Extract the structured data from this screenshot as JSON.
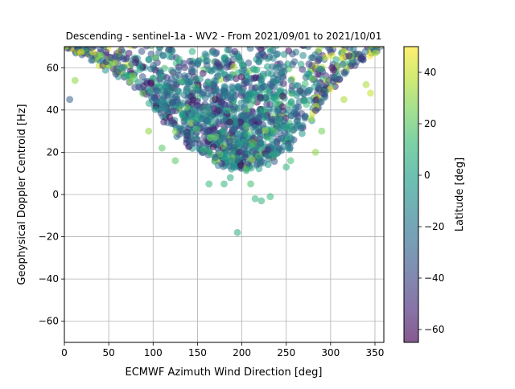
{
  "chart_data": {
    "type": "scatter",
    "title": "Descending - sentinel-1a - WV2 - From 2021/09/01 to 2021/10/01",
    "xlabel": "ECMWF Azimuth Wind Direction [deg]",
    "ylabel": "Geophysical Doppler Centroid [Hz]",
    "xlim": [
      0,
      360
    ],
    "ylim": [
      -70,
      70
    ],
    "xticks": [
      "0",
      "50",
      "100",
      "150",
      "200",
      "250",
      "300",
      "350"
    ],
    "yticks": [
      "−60",
      "−40",
      "−20",
      "0",
      "20",
      "40",
      "60"
    ],
    "grid": true,
    "colorbar": {
      "label": "Latitude [deg]",
      "range": [
        -65,
        50
      ],
      "ticks": [
        "−60",
        "−40",
        "−20",
        "0",
        "20",
        "40"
      ],
      "colormap": "viridis"
    },
    "points": [
      {
        "x": 195,
        "y": -18,
        "lat": 5
      },
      {
        "x": 215,
        "y": -2,
        "lat": 10
      },
      {
        "x": 222,
        "y": -3,
        "lat": 8
      },
      {
        "x": 232,
        "y": -1,
        "lat": 12
      },
      {
        "x": 210,
        "y": 5,
        "lat": 15
      },
      {
        "x": 180,
        "y": 5,
        "lat": 10
      },
      {
        "x": 187,
        "y": 8,
        "lat": 5
      },
      {
        "x": 163,
        "y": 5,
        "lat": 12
      },
      {
        "x": 205,
        "y": 12,
        "lat": 15
      },
      {
        "x": 250,
        "y": 13,
        "lat": 10
      },
      {
        "x": 255,
        "y": 16,
        "lat": 15
      },
      {
        "x": 125,
        "y": 16,
        "lat": 20
      },
      {
        "x": 6,
        "y": 45,
        "lat": -30
      },
      {
        "x": 12,
        "y": 54,
        "lat": 30
      },
      {
        "x": 315,
        "y": 45,
        "lat": 35
      },
      {
        "x": 345,
        "y": 48,
        "lat": 40
      },
      {
        "x": 340,
        "y": 52,
        "lat": 35
      },
      {
        "x": 283,
        "y": 20,
        "lat": 30
      },
      {
        "x": 290,
        "y": 30,
        "lat": 25
      },
      {
        "x": 278,
        "y": 36,
        "lat": 35
      },
      {
        "x": 95,
        "y": 30,
        "lat": 30
      },
      {
        "x": 110,
        "y": 22,
        "lat": 20
      },
      {
        "x": 280,
        "y": 55,
        "lat": 25
      },
      {
        "x": 60,
        "y": 58,
        "lat": -35
      }
    ],
    "cloud": {
      "count": 1500,
      "lat_range": [
        -65,
        50
      ],
      "hull": [
        [
          0,
          70
        ],
        [
          20,
          64
        ],
        [
          60,
          55
        ],
        [
          90,
          45
        ],
        [
          110,
          35
        ],
        [
          130,
          25
        ],
        [
          155,
          18
        ],
        [
          175,
          12
        ],
        [
          200,
          10
        ],
        [
          225,
          12
        ],
        [
          250,
          18
        ],
        [
          275,
          30
        ],
        [
          295,
          45
        ],
        [
          320,
          58
        ],
        [
          345,
          64
        ],
        [
          360,
          70
        ]
      ],
      "dense_center": [
        190,
        40
      ]
    }
  }
}
